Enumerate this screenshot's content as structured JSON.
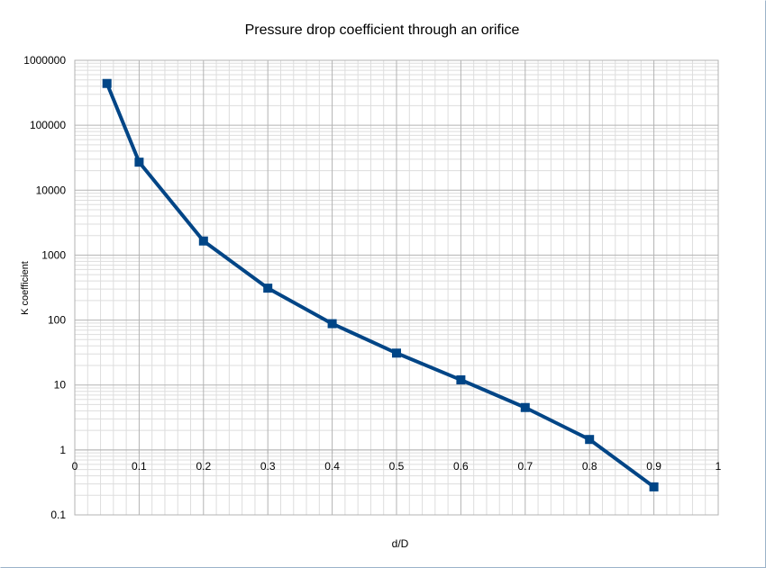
{
  "chart_data": {
    "type": "line",
    "title": "Pressure drop coefficient through an orifice",
    "xlabel": "d/D",
    "ylabel": "K coefficient",
    "xlim": [
      0,
      1
    ],
    "ylim": [
      0.1,
      1000000
    ],
    "yscale": "log",
    "x_ticks": [
      "0",
      "0.1",
      "0.2",
      "0.3",
      "0.4",
      "0.5",
      "0.6",
      "0.7",
      "0.8",
      "0.9",
      "1"
    ],
    "y_ticks": [
      "0.1",
      "1",
      "10",
      "100",
      "1000",
      "10000",
      "100000",
      "1000000"
    ],
    "x_axis_crosses_y_at": 1,
    "grid": true,
    "legend": "none",
    "series_color": "#004586",
    "x": [
      0.05,
      0.1,
      0.2,
      0.3,
      0.4,
      0.5,
      0.6,
      0.7,
      0.8,
      0.9
    ],
    "y": [
      440000,
      27000,
      1650,
      310,
      88,
      31,
      12,
      4.5,
      1.45,
      0.27
    ]
  }
}
